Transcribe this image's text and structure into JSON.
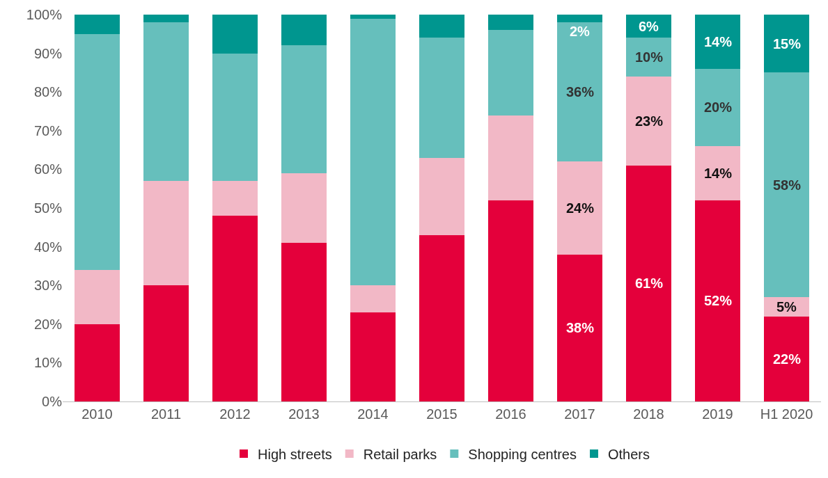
{
  "chart_data": {
    "type": "bar",
    "stacked": true,
    "categories": [
      "2010",
      "2011",
      "2012",
      "2013",
      "2014",
      "2015",
      "2016",
      "2017",
      "2018",
      "2019",
      "H1 2020"
    ],
    "series": [
      {
        "name": "High streets",
        "color": "#e4003b",
        "values": [
          20,
          30,
          48,
          41,
          23,
          43,
          52,
          38,
          61,
          52,
          22
        ],
        "value_labels": [
          null,
          null,
          null,
          null,
          null,
          null,
          null,
          "38%",
          "61%",
          "52%",
          "22%"
        ]
      },
      {
        "name": "Retail parks",
        "color": "#f2b8c6",
        "values": [
          14,
          27,
          9,
          18,
          7,
          20,
          22,
          24,
          23,
          14,
          5
        ],
        "value_labels": [
          null,
          null,
          null,
          null,
          null,
          null,
          null,
          "24%",
          "23%",
          "14%",
          "5%"
        ]
      },
      {
        "name": "Shopping centres",
        "color": "#66bfbc",
        "values": [
          61,
          41,
          33,
          33,
          69,
          31,
          22,
          36,
          10,
          20,
          58
        ],
        "value_labels": [
          null,
          null,
          null,
          null,
          null,
          null,
          null,
          "36%",
          "10%",
          "20%",
          "58%"
        ]
      },
      {
        "name": "Others",
        "color": "#00968f",
        "values": [
          5,
          2,
          10,
          8,
          1,
          6,
          4,
          2,
          6,
          14,
          15
        ],
        "value_labels": [
          null,
          null,
          null,
          null,
          null,
          null,
          null,
          "2%",
          "6%",
          "14%",
          "15%"
        ]
      }
    ],
    "ylim": [
      0,
      100
    ],
    "yticks": [
      {
        "value": 0,
        "label": "0%"
      },
      {
        "value": 10,
        "label": "10%"
      },
      {
        "value": 20,
        "label": "20%"
      },
      {
        "value": 30,
        "label": "30%"
      },
      {
        "value": 40,
        "label": "40%"
      },
      {
        "value": 50,
        "label": "50%"
      },
      {
        "value": 60,
        "label": "60%"
      },
      {
        "value": 70,
        "label": "70%"
      },
      {
        "value": 80,
        "label": "80%"
      },
      {
        "value": 90,
        "label": "90%"
      },
      {
        "value": 100,
        "label": "100%"
      }
    ],
    "legend": "bottom"
  }
}
